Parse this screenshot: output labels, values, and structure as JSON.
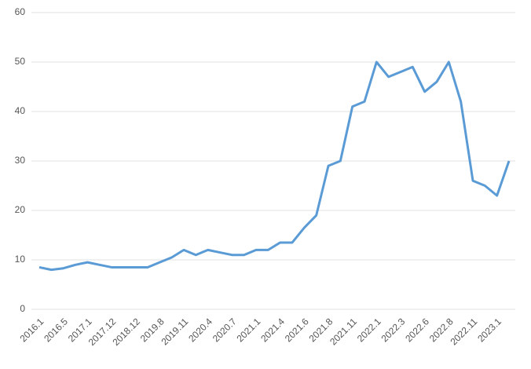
{
  "chart_data": {
    "type": "line",
    "categories": [
      "2016.1",
      null,
      "2016.5",
      null,
      "2017.1",
      null,
      "2017.12",
      null,
      "2018.12",
      null,
      "2019.8",
      null,
      "2019.11",
      null,
      "2020.4",
      null,
      "2020.7",
      null,
      "2021.1",
      null,
      "2021.4",
      null,
      "2021.6",
      null,
      "2021.8",
      null,
      "2021.11",
      null,
      "2022.1",
      null,
      "2022.3",
      null,
      "2022.6",
      null,
      "2022.8",
      null,
      "2022.11",
      null,
      "2023.1",
      null
    ],
    "series": [
      {
        "color": "#5b9bd5",
        "values": [
          8.5,
          8,
          8.3,
          9,
          9.5,
          9,
          8.5,
          8.5,
          8.5,
          8.5,
          9.5,
          10.5,
          12,
          11,
          12,
          11.5,
          11,
          11,
          12,
          12,
          13.5,
          13.5,
          16.5,
          19,
          29,
          30,
          41,
          42,
          50,
          47,
          48,
          49,
          44,
          46,
          50,
          42,
          26,
          25,
          23,
          30
        ]
      }
    ],
    "ylim": [
      0,
      60
    ],
    "yticks": [
      0,
      10,
      20,
      30,
      40,
      50,
      60
    ],
    "grid": true
  }
}
